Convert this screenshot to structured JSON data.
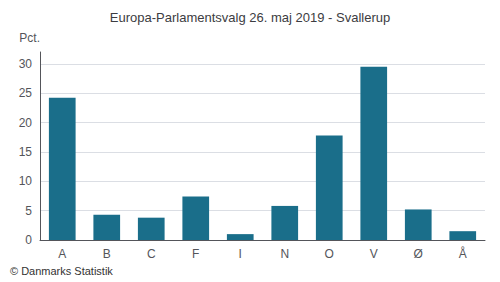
{
  "chart_data": {
    "type": "bar",
    "title": "Europa-Parlamentsvalg 26. maj 2019 - Svallerup",
    "categories": [
      "A",
      "B",
      "C",
      "F",
      "I",
      "N",
      "O",
      "V",
      "Ø",
      "Å"
    ],
    "values": [
      24.2,
      4.3,
      3.8,
      7.4,
      1.0,
      5.8,
      17.8,
      29.5,
      5.2,
      1.5
    ],
    "color": "#1a6e8a",
    "ylabel": "Pct.",
    "ylim": [
      0,
      32
    ],
    "yticks": [
      0,
      5,
      10,
      15,
      20,
      25,
      30
    ],
    "grid": true,
    "annotations": [
      "© Danmarks Statistik"
    ]
  }
}
